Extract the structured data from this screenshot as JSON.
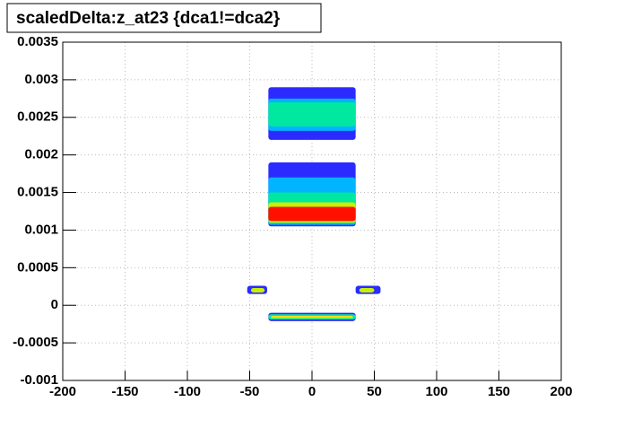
{
  "chart_data": {
    "type": "heatmap2d",
    "title": "scaledDelta:z_at23 {dca1!=dca2}",
    "xlim": [
      -200,
      200
    ],
    "xticks": [
      -200,
      -150,
      -100,
      -50,
      0,
      50,
      100,
      150,
      200
    ],
    "ylim": [
      -0.001,
      0.0035
    ],
    "yticks": [
      -0.001,
      -0.0005,
      0,
      0.0005,
      0.001,
      0.0015,
      0.002,
      0.0025,
      0.003,
      0.0035
    ],
    "grid": true,
    "regions": [
      {
        "x": [
          -35,
          35
        ],
        "y": [
          0.0022,
          0.0029
        ],
        "color": "#2b2bff"
      },
      {
        "x": [
          -35,
          35
        ],
        "y": [
          0.00232,
          0.00275
        ],
        "color": "#00b4ff"
      },
      {
        "x": [
          -35,
          35
        ],
        "y": [
          0.00238,
          0.0027
        ],
        "color": "#00e8a0"
      },
      {
        "x": [
          -35,
          35
        ],
        "y": [
          0.00105,
          0.0019
        ],
        "color": "#2b2bff"
      },
      {
        "x": [
          -35,
          35
        ],
        "y": [
          0.00107,
          0.0017
        ],
        "color": "#00b4ff"
      },
      {
        "x": [
          -35,
          35
        ],
        "y": [
          0.00109,
          0.0015
        ],
        "color": "#00e8a0"
      },
      {
        "x": [
          -35,
          35
        ],
        "y": [
          0.0011,
          0.00137
        ],
        "color": "#c8f000"
      },
      {
        "x": [
          -35,
          35
        ],
        "y": [
          0.00112,
          0.00131
        ],
        "color": "#ff1000"
      },
      {
        "x": [
          -52,
          -36
        ],
        "y": [
          0.00015,
          0.00026
        ],
        "color": "#2b2bff"
      },
      {
        "x": [
          -49,
          -38
        ],
        "y": [
          0.00017,
          0.00023
        ],
        "color": "#c8f000"
      },
      {
        "x": [
          35,
          55
        ],
        "y": [
          0.00015,
          0.00026
        ],
        "color": "#2b2bff"
      },
      {
        "x": [
          38,
          50
        ],
        "y": [
          0.00017,
          0.00023
        ],
        "color": "#c8f000"
      },
      {
        "x": [
          -35,
          35
        ],
        "y": [
          -0.00021,
          -0.0001
        ],
        "color": "#2b2bff"
      },
      {
        "x": [
          -35,
          35
        ],
        "y": [
          -0.00019,
          -0.00012
        ],
        "color": "#00e8a0"
      },
      {
        "x": [
          -33,
          33
        ],
        "y": [
          -0.00017,
          -0.00014
        ],
        "color": "#ffe000"
      }
    ]
  }
}
